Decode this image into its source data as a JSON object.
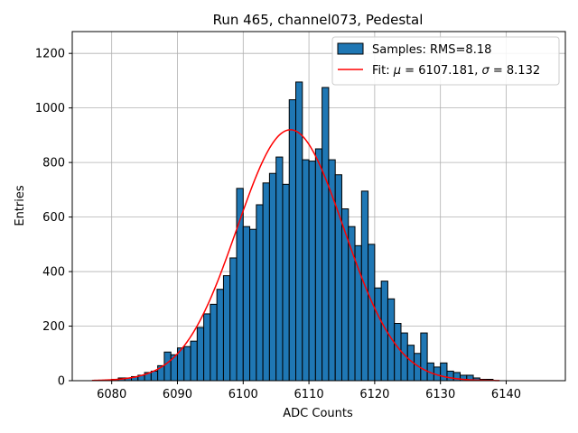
{
  "chart_data": {
    "type": "bar",
    "title": "Run 465, channel073, Pedestal",
    "xlabel": "ADC Counts",
    "ylabel": "Entries",
    "xlim": [
      6074,
      6149
    ],
    "ylim": [
      0,
      1280
    ],
    "xticks": [
      6080,
      6090,
      6100,
      6110,
      6120,
      6130,
      6140
    ],
    "yticks": [
      0,
      200,
      400,
      600,
      800,
      1000,
      1200
    ],
    "grid": true,
    "legend_position": "top-right",
    "colors": {
      "bars": "#1f77b4",
      "edge": "#000000",
      "fit": "#ff0000",
      "grid": "#b0b0b0"
    },
    "histogram": {
      "name": "Samples: RMS=8.18",
      "bin_edges_start": 6077,
      "bin_width": 1,
      "counts": [
        0,
        0,
        0,
        5,
        10,
        10,
        15,
        20,
        30,
        35,
        55,
        105,
        95,
        120,
        125,
        145,
        195,
        245,
        280,
        335,
        385,
        450,
        705,
        565,
        555,
        645,
        725,
        760,
        820,
        720,
        1030,
        1095,
        810,
        805,
        850,
        1075,
        810,
        755,
        630,
        565,
        495,
        695,
        500,
        340,
        365,
        300,
        210,
        175,
        130,
        100,
        175,
        65,
        50,
        65,
        35,
        30,
        20,
        20,
        10,
        5,
        5,
        0
      ]
    },
    "fit": {
      "name": "Fit: μ = 6107.181, σ = 8.132",
      "label_prefix": "Fit: ",
      "mu_text": " = 6107.181, ",
      "sigma_text": " = 8.132",
      "mu_symbol": "μ",
      "sigma_symbol": "σ",
      "mu": 6107.181,
      "sigma": 8.132,
      "amplitude": 920,
      "x_range": [
        6077,
        6139
      ]
    }
  }
}
